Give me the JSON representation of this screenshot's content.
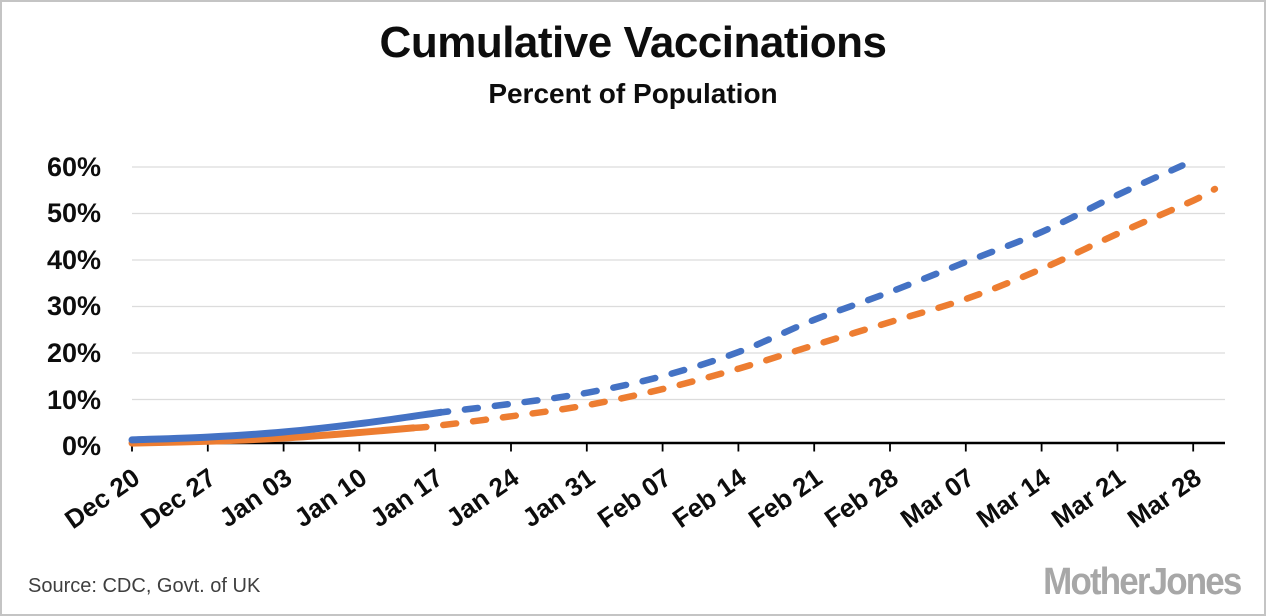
{
  "chart_data": {
    "type": "line",
    "title": "Cumulative Vaccinations",
    "subtitle": "Percent of Population",
    "x_tick_labels": [
      "Dec 20",
      "Dec 27",
      "Jan 03",
      "Jan 10",
      "Jan 17",
      "Jan 24",
      "Jan 31",
      "Feb 07",
      "Feb 14",
      "Feb 21",
      "Feb 28",
      "Mar 07",
      "Mar 14",
      "Mar 21",
      "Mar 28"
    ],
    "y_tick_labels": [
      "0%",
      "10%",
      "20%",
      "30%",
      "40%",
      "50%",
      "60%"
    ],
    "ylim": [
      0,
      62
    ],
    "grid": "horizontal light-gray gridlines every 10%, black bottom axis with weekly ticks, x labels rotated",
    "legend": "none",
    "series": [
      {
        "name": "blue-line",
        "color": "#4472C4",
        "line_style": "solid (actual) then dashed (projection)",
        "solid_until_day": 28,
        "points_day_pct": [
          [
            0,
            1.0
          ],
          [
            7,
            1.6
          ],
          [
            14,
            2.7
          ],
          [
            21,
            4.5
          ],
          [
            28,
            6.8
          ],
          [
            35,
            8.8
          ],
          [
            42,
            11.2
          ],
          [
            49,
            14.8
          ],
          [
            56,
            20.0
          ],
          [
            63,
            27.0
          ],
          [
            70,
            33.0
          ],
          [
            77,
            39.5
          ],
          [
            84,
            46.0
          ],
          [
            91,
            54.0
          ],
          [
            97,
            60.4
          ]
        ]
      },
      {
        "name": "orange-line",
        "color": "#ED7D31",
        "line_style": "solid (actual) then dashed (projection)",
        "solid_until_day": 26,
        "points_day_pct": [
          [
            0,
            0.3
          ],
          [
            7,
            0.7
          ],
          [
            14,
            1.4
          ],
          [
            21,
            2.6
          ],
          [
            28,
            4.0
          ],
          [
            35,
            6.1
          ],
          [
            42,
            8.5
          ],
          [
            49,
            12.0
          ],
          [
            56,
            16.4
          ],
          [
            63,
            21.5
          ],
          [
            70,
            26.5
          ],
          [
            77,
            31.5
          ],
          [
            84,
            38.0
          ],
          [
            91,
            45.6
          ],
          [
            98,
            52.8
          ],
          [
            100,
            55.3
          ]
        ]
      }
    ]
  },
  "footer": {
    "source": "Source: CDC, Govt. of UK",
    "brand": "MotherJones"
  }
}
